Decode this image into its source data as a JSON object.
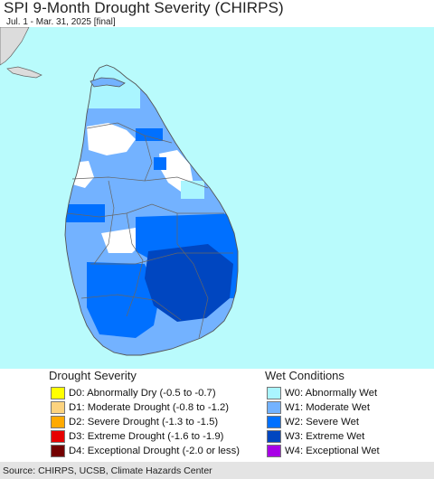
{
  "header": {
    "title": "SPI 9-Month Drought Severity (CHIRPS)",
    "subtitle": "Jul. 1 - Mar. 31, 2025 [final]"
  },
  "map": {
    "region": "Sri Lanka",
    "water_color": "#b9fbfc",
    "land_color": "#dcdcdc",
    "border_color": "#666666"
  },
  "legend": {
    "drought_title": "Drought Severity",
    "wet_title": "Wet Conditions",
    "drought": [
      {
        "label": "D0: Abnormally Dry (-0.5 to -0.7)",
        "color": "#ffff00"
      },
      {
        "label": "D1: Moderate Drought (-0.8 to -1.2)",
        "color": "#fcd37f"
      },
      {
        "label": "D2: Severe Drought (-1.3 to -1.5)",
        "color": "#ffaa00"
      },
      {
        "label": "D3: Extreme Drought (-1.6 to -1.9)",
        "color": "#e60000"
      },
      {
        "label": "D4: Exceptional Drought (-2.0 or less)",
        "color": "#730000"
      }
    ],
    "wet": [
      {
        "label": "W0: Abnormally Wet",
        "color": "#aaf5ff"
      },
      {
        "label": "W1: Moderate Wet",
        "color": "#73b2ff"
      },
      {
        "label": "W2: Severe Wet",
        "color": "#0070ff"
      },
      {
        "label": "W3: Extreme Wet",
        "color": "#0046c0"
      },
      {
        "label": "W4: Exceptional Wet",
        "color": "#a800e6"
      }
    ]
  },
  "footer": {
    "source": "Source: CHIRPS, UCSB, Climate Hazards Center"
  }
}
